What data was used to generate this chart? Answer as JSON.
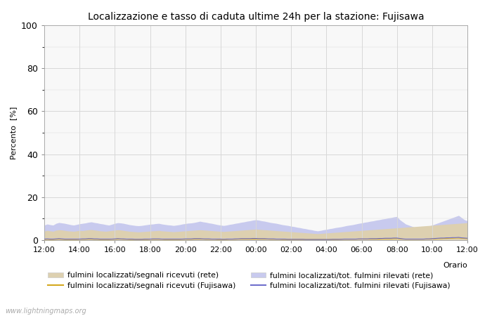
{
  "title": "Localizzazione e tasso di caduta ultime 24h per la stazione: Fujisawa",
  "ylabel": "Percento  [%]",
  "xlabel": "Orario",
  "ylim": [
    0,
    100
  ],
  "yticks": [
    0,
    20,
    40,
    60,
    80,
    100
  ],
  "yticks_minor": [
    10,
    30,
    50,
    70,
    90
  ],
  "xtick_labels": [
    "12:00",
    "14:00",
    "16:00",
    "18:00",
    "20:00",
    "22:00",
    "00:00",
    "02:00",
    "04:00",
    "06:00",
    "08:00",
    "10:00",
    "12:00"
  ],
  "background_color": "#ffffff",
  "plot_bg_color": "#f8f8f8",
  "grid_color": "#d8d8d8",
  "fill_rete_color": "#ddd0b0",
  "fill_rete_tot_color": "#c8caee",
  "line_fujisawa_sig_color": "#d4a820",
  "line_fujisawa_tot_color": "#7070cc",
  "watermark": "www.lightningmaps.org",
  "legend": [
    {
      "label": "fulmini localizzati/segnali ricevuti (rete)",
      "type": "fill",
      "color": "#ddd0b0"
    },
    {
      "label": "fulmini localizzati/segnali ricevuti (Fujisawa)",
      "type": "line",
      "color": "#d4a820"
    },
    {
      "label": "fulmini localizzati/tot. fulmini rilevati (rete)",
      "type": "fill",
      "color": "#c8caee"
    },
    {
      "label": "fulmini localizzati/tot. fulmini rilevati (Fujisawa)",
      "type": "line",
      "color": "#7070cc"
    }
  ],
  "n_points": 145,
  "rete_segnali": [
    4.2,
    4.5,
    4.3,
    4.1,
    4.6,
    4.8,
    4.7,
    4.5,
    4.3,
    4.2,
    4.1,
    4.3,
    4.5,
    4.4,
    4.6,
    4.8,
    4.9,
    4.7,
    4.5,
    4.3,
    4.2,
    4.1,
    4.3,
    4.5,
    4.6,
    4.8,
    4.7,
    4.5,
    4.3,
    4.1,
    4.0,
    3.9,
    3.8,
    3.9,
    4.0,
    4.1,
    4.2,
    4.3,
    4.4,
    4.5,
    4.3,
    4.2,
    4.1,
    4.0,
    3.9,
    4.0,
    4.1,
    4.2,
    4.3,
    4.4,
    4.5,
    4.6,
    4.7,
    4.8,
    4.7,
    4.6,
    4.5,
    4.4,
    4.3,
    4.2,
    4.1,
    4.0,
    4.1,
    4.2,
    4.3,
    4.4,
    4.5,
    4.6,
    4.7,
    4.8,
    4.9,
    5.0,
    5.1,
    5.0,
    4.9,
    4.8,
    4.7,
    4.6,
    4.5,
    4.4,
    4.3,
    4.2,
    4.1,
    4.0,
    3.9,
    3.8,
    3.7,
    3.6,
    3.5,
    3.4,
    3.3,
    3.2,
    3.1,
    3.0,
    3.1,
    3.2,
    3.3,
    3.4,
    3.5,
    3.6,
    3.7,
    3.8,
    3.9,
    4.0,
    4.1,
    4.2,
    4.3,
    4.4,
    4.5,
    4.6,
    4.7,
    4.8,
    4.9,
    5.0,
    5.1,
    5.2,
    5.3,
    5.4,
    5.5,
    5.6,
    5.7,
    5.8,
    5.9,
    6.0,
    6.1,
    6.2,
    6.3,
    6.4,
    6.5,
    6.6,
    6.7,
    6.8,
    6.9,
    7.0,
    7.1,
    7.2,
    7.3,
    7.4,
    7.5,
    7.6,
    7.7,
    7.8,
    7.9,
    8.0,
    8.1
  ],
  "rete_tot": [
    7.0,
    7.5,
    7.2,
    7.0,
    7.8,
    8.2,
    8.0,
    7.8,
    7.5,
    7.2,
    7.0,
    7.3,
    7.6,
    7.8,
    8.0,
    8.3,
    8.5,
    8.2,
    8.0,
    7.7,
    7.5,
    7.2,
    7.0,
    7.4,
    7.8,
    8.1,
    8.0,
    7.8,
    7.5,
    7.2,
    7.0,
    6.8,
    6.7,
    6.8,
    7.0,
    7.2,
    7.4,
    7.5,
    7.7,
    7.8,
    7.5,
    7.3,
    7.1,
    7.0,
    6.8,
    7.0,
    7.2,
    7.5,
    7.7,
    7.9,
    8.0,
    8.2,
    8.5,
    8.8,
    8.5,
    8.3,
    8.0,
    7.8,
    7.5,
    7.2,
    7.0,
    6.8,
    7.0,
    7.3,
    7.5,
    7.8,
    8.0,
    8.3,
    8.5,
    8.8,
    9.0,
    9.3,
    9.5,
    9.3,
    9.0,
    8.8,
    8.5,
    8.2,
    8.0,
    7.8,
    7.5,
    7.2,
    7.0,
    6.8,
    6.5,
    6.3,
    6.0,
    5.8,
    5.5,
    5.3,
    5.0,
    4.8,
    4.5,
    4.3,
    4.5,
    4.8,
    5.0,
    5.3,
    5.5,
    5.8,
    6.0,
    6.2,
    6.5,
    6.8,
    7.0,
    7.2,
    7.5,
    7.8,
    8.0,
    8.3,
    8.5,
    8.8,
    9.0,
    9.3,
    9.5,
    9.8,
    10.0,
    10.3,
    10.5,
    10.8,
    11.0,
    9.5,
    8.5,
    7.5,
    7.0,
    6.5,
    6.0,
    5.8,
    5.5,
    5.3,
    6.0,
    6.5,
    7.0,
    7.5,
    8.0,
    8.5,
    9.0,
    9.5,
    10.0,
    10.5,
    11.0,
    11.5,
    10.5,
    9.5,
    9.0
  ],
  "fujisawa_segnali": [
    0.3,
    0.4,
    0.3,
    0.3,
    0.4,
    0.5,
    0.4,
    0.3,
    0.3,
    0.3,
    0.3,
    0.3,
    0.4,
    0.4,
    0.4,
    0.5,
    0.5,
    0.4,
    0.4,
    0.3,
    0.3,
    0.3,
    0.3,
    0.4,
    0.4,
    0.5,
    0.5,
    0.4,
    0.4,
    0.3,
    0.3,
    0.3,
    0.3,
    0.3,
    0.3,
    0.3,
    0.4,
    0.4,
    0.4,
    0.4,
    0.4,
    0.3,
    0.3,
    0.3,
    0.3,
    0.3,
    0.3,
    0.4,
    0.4,
    0.4,
    0.4,
    0.5,
    0.5,
    0.5,
    0.5,
    0.4,
    0.4,
    0.4,
    0.4,
    0.3,
    0.3,
    0.3,
    0.3,
    0.4,
    0.4,
    0.4,
    0.5,
    0.5,
    0.5,
    0.5,
    0.5,
    0.5,
    0.5,
    0.5,
    0.5,
    0.5,
    0.5,
    0.4,
    0.4,
    0.4,
    0.4,
    0.3,
    0.3,
    0.3,
    0.3,
    0.3,
    0.3,
    0.3,
    0.3,
    0.3,
    0.3,
    0.3,
    0.3,
    0.3,
    0.3,
    0.3,
    0.3,
    0.3,
    0.3,
    0.3,
    0.3,
    0.4,
    0.4,
    0.4,
    0.4,
    0.4,
    0.4,
    0.5,
    0.5,
    0.5,
    0.5,
    0.5,
    0.5,
    0.5,
    0.5,
    0.6,
    0.6,
    0.6,
    0.6,
    0.7,
    0.7,
    0.6,
    0.5,
    0.4,
    0.4,
    0.4,
    0.4,
    0.4,
    0.4,
    0.4,
    0.5,
    0.5,
    0.6,
    0.6,
    0.7,
    0.7,
    0.8,
    0.8,
    0.9,
    0.9,
    1.0,
    1.0,
    0.9,
    0.8,
    0.7
  ],
  "fujisawa_tot": [
    0.5,
    0.6,
    0.5,
    0.5,
    0.6,
    0.7,
    0.6,
    0.5,
    0.5,
    0.5,
    0.5,
    0.5,
    0.5,
    0.6,
    0.6,
    0.7,
    0.7,
    0.6,
    0.6,
    0.5,
    0.5,
    0.5,
    0.5,
    0.5,
    0.6,
    0.7,
    0.6,
    0.6,
    0.5,
    0.5,
    0.5,
    0.4,
    0.4,
    0.4,
    0.5,
    0.5,
    0.5,
    0.6,
    0.6,
    0.6,
    0.5,
    0.5,
    0.5,
    0.5,
    0.5,
    0.5,
    0.5,
    0.5,
    0.6,
    0.6,
    0.6,
    0.7,
    0.7,
    0.7,
    0.6,
    0.6,
    0.6,
    0.5,
    0.5,
    0.5,
    0.5,
    0.4,
    0.5,
    0.5,
    0.5,
    0.6,
    0.6,
    0.7,
    0.7,
    0.7,
    0.7,
    0.8,
    0.8,
    0.7,
    0.7,
    0.7,
    0.6,
    0.6,
    0.6,
    0.5,
    0.5,
    0.5,
    0.5,
    0.4,
    0.4,
    0.4,
    0.4,
    0.4,
    0.4,
    0.3,
    0.3,
    0.3,
    0.3,
    0.3,
    0.3,
    0.3,
    0.3,
    0.3,
    0.4,
    0.4,
    0.4,
    0.4,
    0.5,
    0.5,
    0.5,
    0.5,
    0.5,
    0.6,
    0.6,
    0.6,
    0.6,
    0.7,
    0.7,
    0.7,
    0.8,
    0.8,
    0.9,
    0.9,
    0.9,
    1.0,
    1.0,
    0.8,
    0.6,
    0.5,
    0.5,
    0.5,
    0.5,
    0.5,
    0.5,
    0.5,
    0.6,
    0.6,
    0.7,
    0.8,
    0.9,
    1.0,
    1.0,
    1.1,
    1.1,
    1.2,
    1.2,
    1.3,
    1.1,
    1.0,
    0.9
  ]
}
